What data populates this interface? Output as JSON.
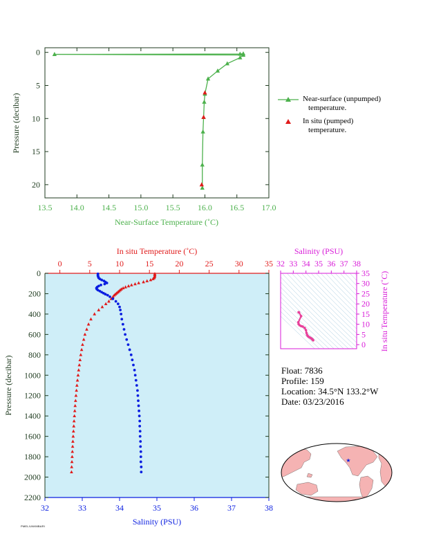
{
  "colors": {
    "green": "#4cb14c",
    "red": "#e01b1b",
    "blue": "#0a1ee0",
    "magenta": "#d81ad8",
    "plot_bg": "#cfeef8",
    "land": "#f5b3b3",
    "ocean": "#ffffff",
    "pink_trace": "#e8409a",
    "dark": "#1e3a1e"
  },
  "legend": {
    "near_surface_line1": "Near-surface (unpumped)",
    "near_surface_line2": "temperature.",
    "in_situ_line1": "In situ (pumped)",
    "in_situ_line2": "temperature."
  },
  "info": {
    "float": "Float:  7836",
    "profile": "Profile:  159",
    "location": "Location:  34.5°N  133.2°W",
    "date": "Date:  03/23/2016"
  },
  "footer": "PMEL/UW/MBARI",
  "chart_data": [
    {
      "type": "line",
      "title": "",
      "xlabel": "Near-Surface Temperature (˚C)",
      "ylabel": "Pressure (decibar)",
      "xlim": [
        13.5,
        17.0
      ],
      "ylim": [
        22,
        -0.7
      ],
      "x_ticks": [
        "13.5",
        "14.0",
        "14.5",
        "15.0",
        "15.5",
        "16.0",
        "16.5",
        "17.0"
      ],
      "y_ticks": [
        "0",
        "5",
        "10",
        "15",
        "20"
      ],
      "series": [
        {
          "name": "Near-surface (unpumped) temperature.",
          "x": [
            16.6,
            16.55,
            13.65,
            16.6,
            16.55,
            16.35,
            16.2,
            16.05,
            16.0,
            15.99,
            15.98,
            15.97,
            15.96,
            15.96
          ],
          "y": [
            0.2,
            0.25,
            0.3,
            0.4,
            0.8,
            1.7,
            2.8,
            4.0,
            6.3,
            7.5,
            9.8,
            12.0,
            17.0,
            20.5
          ]
        },
        {
          "name": "In situ (pumped) temperature.",
          "x": [
            16.0,
            15.98,
            15.95
          ],
          "y": [
            6.1,
            9.8,
            20.0
          ]
        }
      ]
    },
    {
      "type": "scatter",
      "title": "",
      "x_bottom_label": "Salinity (PSU)",
      "x_top_label": "In situ Temperature (˚C)",
      "ylabel": "Pressure (decibar)",
      "salinity_lim": [
        32,
        38
      ],
      "temperature_lim": [
        -2.5,
        35
      ],
      "ylim": [
        2200,
        0
      ],
      "salinity_ticks": [
        "32",
        "33",
        "34",
        "35",
        "36",
        "37",
        "38"
      ],
      "temperature_ticks": [
        "0",
        "5",
        "10",
        "15",
        "20",
        "25",
        "30",
        "35"
      ],
      "y_ticks": [
        "0",
        "200",
        "400",
        "600",
        "800",
        "1000",
        "1200",
        "1400",
        "1600",
        "1800",
        "2000",
        "2200"
      ],
      "temperature": {
        "pressure": [
          5,
          15,
          25,
          35,
          45,
          55,
          65,
          75,
          85,
          95,
          105,
          115,
          125,
          135,
          145,
          155,
          165,
          175,
          185,
          195,
          205,
          215,
          230,
          250,
          275,
          300,
          330,
          360,
          400,
          450,
          500,
          550,
          600,
          650,
          700,
          750,
          800,
          850,
          900,
          950,
          1000,
          1050,
          1100,
          1150,
          1200,
          1250,
          1300,
          1350,
          1400,
          1450,
          1500,
          1550,
          1600,
          1650,
          1700,
          1750,
          1800,
          1850,
          1900,
          1950
        ],
        "values": [
          15.9,
          15.9,
          15.9,
          15.85,
          15.8,
          15.6,
          15.2,
          14.6,
          14.0,
          13.2,
          12.6,
          12.0,
          11.5,
          11.0,
          10.6,
          10.3,
          10.1,
          9.9,
          9.7,
          9.5,
          9.3,
          9.1,
          8.9,
          8.6,
          8.2,
          7.7,
          7.1,
          6.5,
          5.8,
          5.2,
          4.8,
          4.5,
          4.2,
          4.0,
          3.8,
          3.65,
          3.5,
          3.38,
          3.26,
          3.15,
          3.05,
          2.95,
          2.86,
          2.78,
          2.7,
          2.63,
          2.56,
          2.5,
          2.44,
          2.38,
          2.33,
          2.28,
          2.23,
          2.18,
          2.14,
          2.1,
          2.06,
          2.02,
          1.98,
          1.95
        ]
      },
      "salinity": {
        "pressure": [
          5,
          15,
          25,
          35,
          45,
          55,
          65,
          75,
          85,
          95,
          105,
          115,
          125,
          135,
          145,
          155,
          165,
          175,
          185,
          195,
          205,
          215,
          230,
          250,
          275,
          300,
          330,
          360,
          400,
          450,
          500,
          550,
          600,
          650,
          700,
          750,
          800,
          850,
          900,
          950,
          1000,
          1050,
          1100,
          1150,
          1200,
          1250,
          1300,
          1350,
          1400,
          1450,
          1500,
          1550,
          1600,
          1650,
          1700,
          1750,
          1800,
          1850,
          1900,
          1950
        ],
        "values": [
          33.42,
          33.42,
          33.42,
          33.43,
          33.44,
          33.47,
          33.52,
          33.58,
          33.62,
          33.66,
          33.6,
          33.5,
          33.44,
          33.4,
          33.38,
          33.39,
          33.42,
          33.47,
          33.52,
          33.57,
          33.62,
          33.68,
          33.74,
          33.82,
          33.9,
          33.96,
          34.0,
          34.02,
          34.04,
          34.06,
          34.09,
          34.12,
          34.15,
          34.19,
          34.23,
          34.27,
          34.31,
          34.34,
          34.37,
          34.4,
          34.42,
          34.44,
          34.46,
          34.48,
          34.49,
          34.5,
          34.51,
          34.52,
          34.53,
          34.54,
          34.54,
          34.55,
          34.55,
          34.56,
          34.56,
          34.57,
          34.57,
          34.57,
          34.58,
          34.58
        ]
      }
    },
    {
      "type": "scatter",
      "title": "Salinity (PSU)",
      "x_ticks": [
        "32",
        "33",
        "34",
        "35",
        "36",
        "37",
        "38"
      ],
      "y_ticks": [
        "0",
        "5",
        "10",
        "15",
        "20",
        "25",
        "30",
        "35"
      ],
      "xlim": [
        32,
        38
      ],
      "ylim": [
        -2,
        35
      ],
      "ylabel": "In situ Temperature (˚C)",
      "x": [
        33.42,
        33.45,
        33.62,
        33.4,
        33.42,
        33.5,
        33.62,
        33.74,
        33.9,
        34.0,
        34.04,
        34.09,
        34.15,
        34.23,
        34.31,
        34.4,
        34.46,
        34.5,
        34.54,
        34.57
      ],
      "y": [
        15.9,
        15.8,
        14.0,
        11.0,
        10.1,
        9.5,
        9.1,
        8.9,
        8.2,
        7.1,
        5.8,
        4.8,
        4.2,
        3.8,
        3.5,
        3.15,
        2.86,
        2.63,
        2.38,
        2.14
      ]
    }
  ],
  "map": {
    "float_marker": "★"
  }
}
